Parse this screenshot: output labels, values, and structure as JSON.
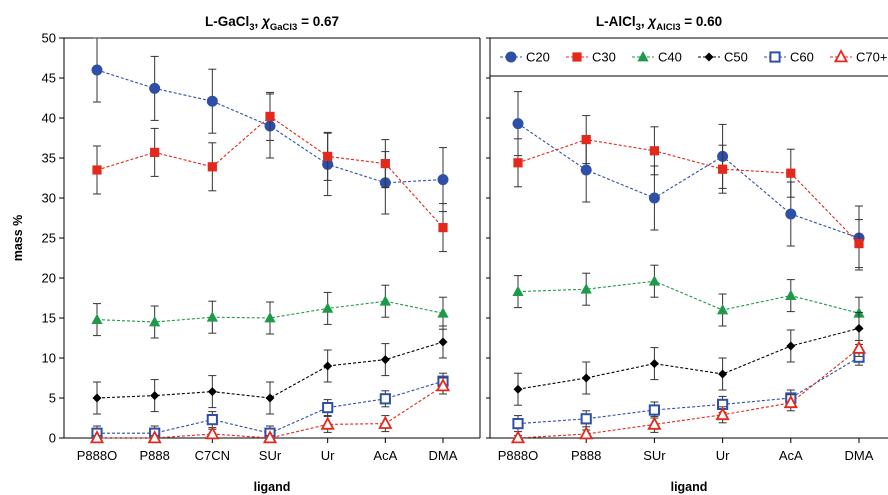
{
  "chart_data": [
    {
      "type": "line",
      "title": "L-GaCl3, χGaCl3 = 0.67",
      "title_parts": [
        "L-GaCl",
        "3",
        ", ",
        "χ",
        "GaCl3",
        " = 0.67"
      ],
      "xlabel": "ligand",
      "ylabel": "mass %",
      "ylim": [
        0,
        50
      ],
      "yticks": [
        "0",
        "5",
        "10",
        "15",
        "20",
        "25",
        "30",
        "35",
        "40",
        "45",
        "50"
      ],
      "categories": [
        "P888O",
        "P888",
        "C7CN",
        "SUr",
        "Ur",
        "AcA",
        "DMA"
      ],
      "error_bars": true,
      "grid": false,
      "legend_shown": false,
      "series": [
        {
          "name": "C20",
          "color": "#2e4fa8",
          "marker": "circle",
          "values": [
            46.0,
            43.7,
            42.1,
            39.0,
            34.2,
            31.9,
            32.3
          ],
          "errors": [
            4.0,
            4.0,
            4.0,
            4.0,
            3.9,
            3.9,
            4.0
          ]
        },
        {
          "name": "C30",
          "color": "#e3281c",
          "marker": "square",
          "values": [
            33.5,
            35.7,
            33.9,
            40.2,
            35.2,
            34.3,
            26.3
          ],
          "errors": [
            3.0,
            3.0,
            3.0,
            3.0,
            3.0,
            3.0,
            3.0
          ]
        },
        {
          "name": "C40",
          "color": "#1f9a4a",
          "marker": "triangle",
          "values": [
            14.8,
            14.5,
            15.1,
            15.0,
            16.2,
            17.1,
            15.6
          ],
          "errors": [
            2.0,
            2.0,
            2.0,
            2.0,
            2.0,
            2.0,
            2.0
          ]
        },
        {
          "name": "C50",
          "color": "#000000",
          "marker": "diamond",
          "values": [
            5.0,
            5.3,
            5.8,
            5.0,
            9.0,
            9.8,
            12.0
          ],
          "errors": [
            2.0,
            2.0,
            2.0,
            2.0,
            2.0,
            2.0,
            2.0
          ]
        },
        {
          "name": "C60",
          "color": "#2e4fa8",
          "marker": "open-square",
          "values": [
            0.6,
            0.6,
            2.3,
            0.6,
            3.8,
            4.9,
            7.1
          ],
          "errors": [
            0.9,
            0.9,
            1.0,
            0.9,
            1.0,
            1.0,
            1.0
          ]
        },
        {
          "name": "C70+",
          "color": "#e3281c",
          "marker": "open-triangle",
          "values": [
            0.0,
            0.0,
            0.5,
            0.0,
            1.7,
            1.8,
            6.5
          ],
          "errors": [
            0.3,
            0.3,
            0.6,
            0.3,
            1.0,
            1.0,
            1.0
          ]
        }
      ]
    },
    {
      "type": "line",
      "title": "L-AlCl3, χAlCl3 = 0.60",
      "title_parts": [
        "L-AlCl",
        "3",
        ", ",
        "χ",
        "AlCl3",
        " = 0.60"
      ],
      "xlabel": "ligand",
      "ylabel": "",
      "ylim": [
        0,
        50
      ],
      "categories": [
        "P888O",
        "P888",
        "SUr",
        "Ur",
        "AcA",
        "DMA"
      ],
      "error_bars": true,
      "grid": false,
      "legend_shown": true,
      "legend_position": "top",
      "series": [
        {
          "name": "C20",
          "color": "#2e4fa8",
          "marker": "circle",
          "values": [
            39.3,
            33.5,
            30.0,
            35.2,
            28.0,
            25.0
          ],
          "errors": [
            4.0,
            4.0,
            4.0,
            4.0,
            4.0,
            4.0
          ]
        },
        {
          "name": "C30",
          "color": "#e3281c",
          "marker": "square",
          "values": [
            34.4,
            37.3,
            35.9,
            33.6,
            33.1,
            24.3
          ],
          "errors": [
            3.0,
            3.0,
            3.0,
            3.0,
            3.0,
            3.0
          ]
        },
        {
          "name": "C40",
          "color": "#1f9a4a",
          "marker": "triangle",
          "values": [
            18.3,
            18.6,
            19.6,
            16.0,
            17.8,
            15.6
          ],
          "errors": [
            2.0,
            2.0,
            2.0,
            2.0,
            2.0,
            2.0
          ]
        },
        {
          "name": "C50",
          "color": "#000000",
          "marker": "diamond",
          "values": [
            6.1,
            7.5,
            9.3,
            8.0,
            11.5,
            13.7
          ],
          "errors": [
            2.0,
            2.0,
            2.0,
            2.0,
            2.0,
            2.0
          ]
        },
        {
          "name": "C60",
          "color": "#2e4fa8",
          "marker": "open-square",
          "values": [
            1.8,
            2.4,
            3.5,
            4.2,
            5.0,
            10.1
          ],
          "errors": [
            1.0,
            1.0,
            1.0,
            1.0,
            1.0,
            1.0
          ]
        },
        {
          "name": "C70+",
          "color": "#e3281c",
          "marker": "open-triangle",
          "values": [
            0.0,
            0.5,
            1.7,
            2.9,
            4.4,
            11.2
          ],
          "errors": [
            0.3,
            0.5,
            1.0,
            1.0,
            1.0,
            1.0
          ]
        }
      ]
    }
  ]
}
